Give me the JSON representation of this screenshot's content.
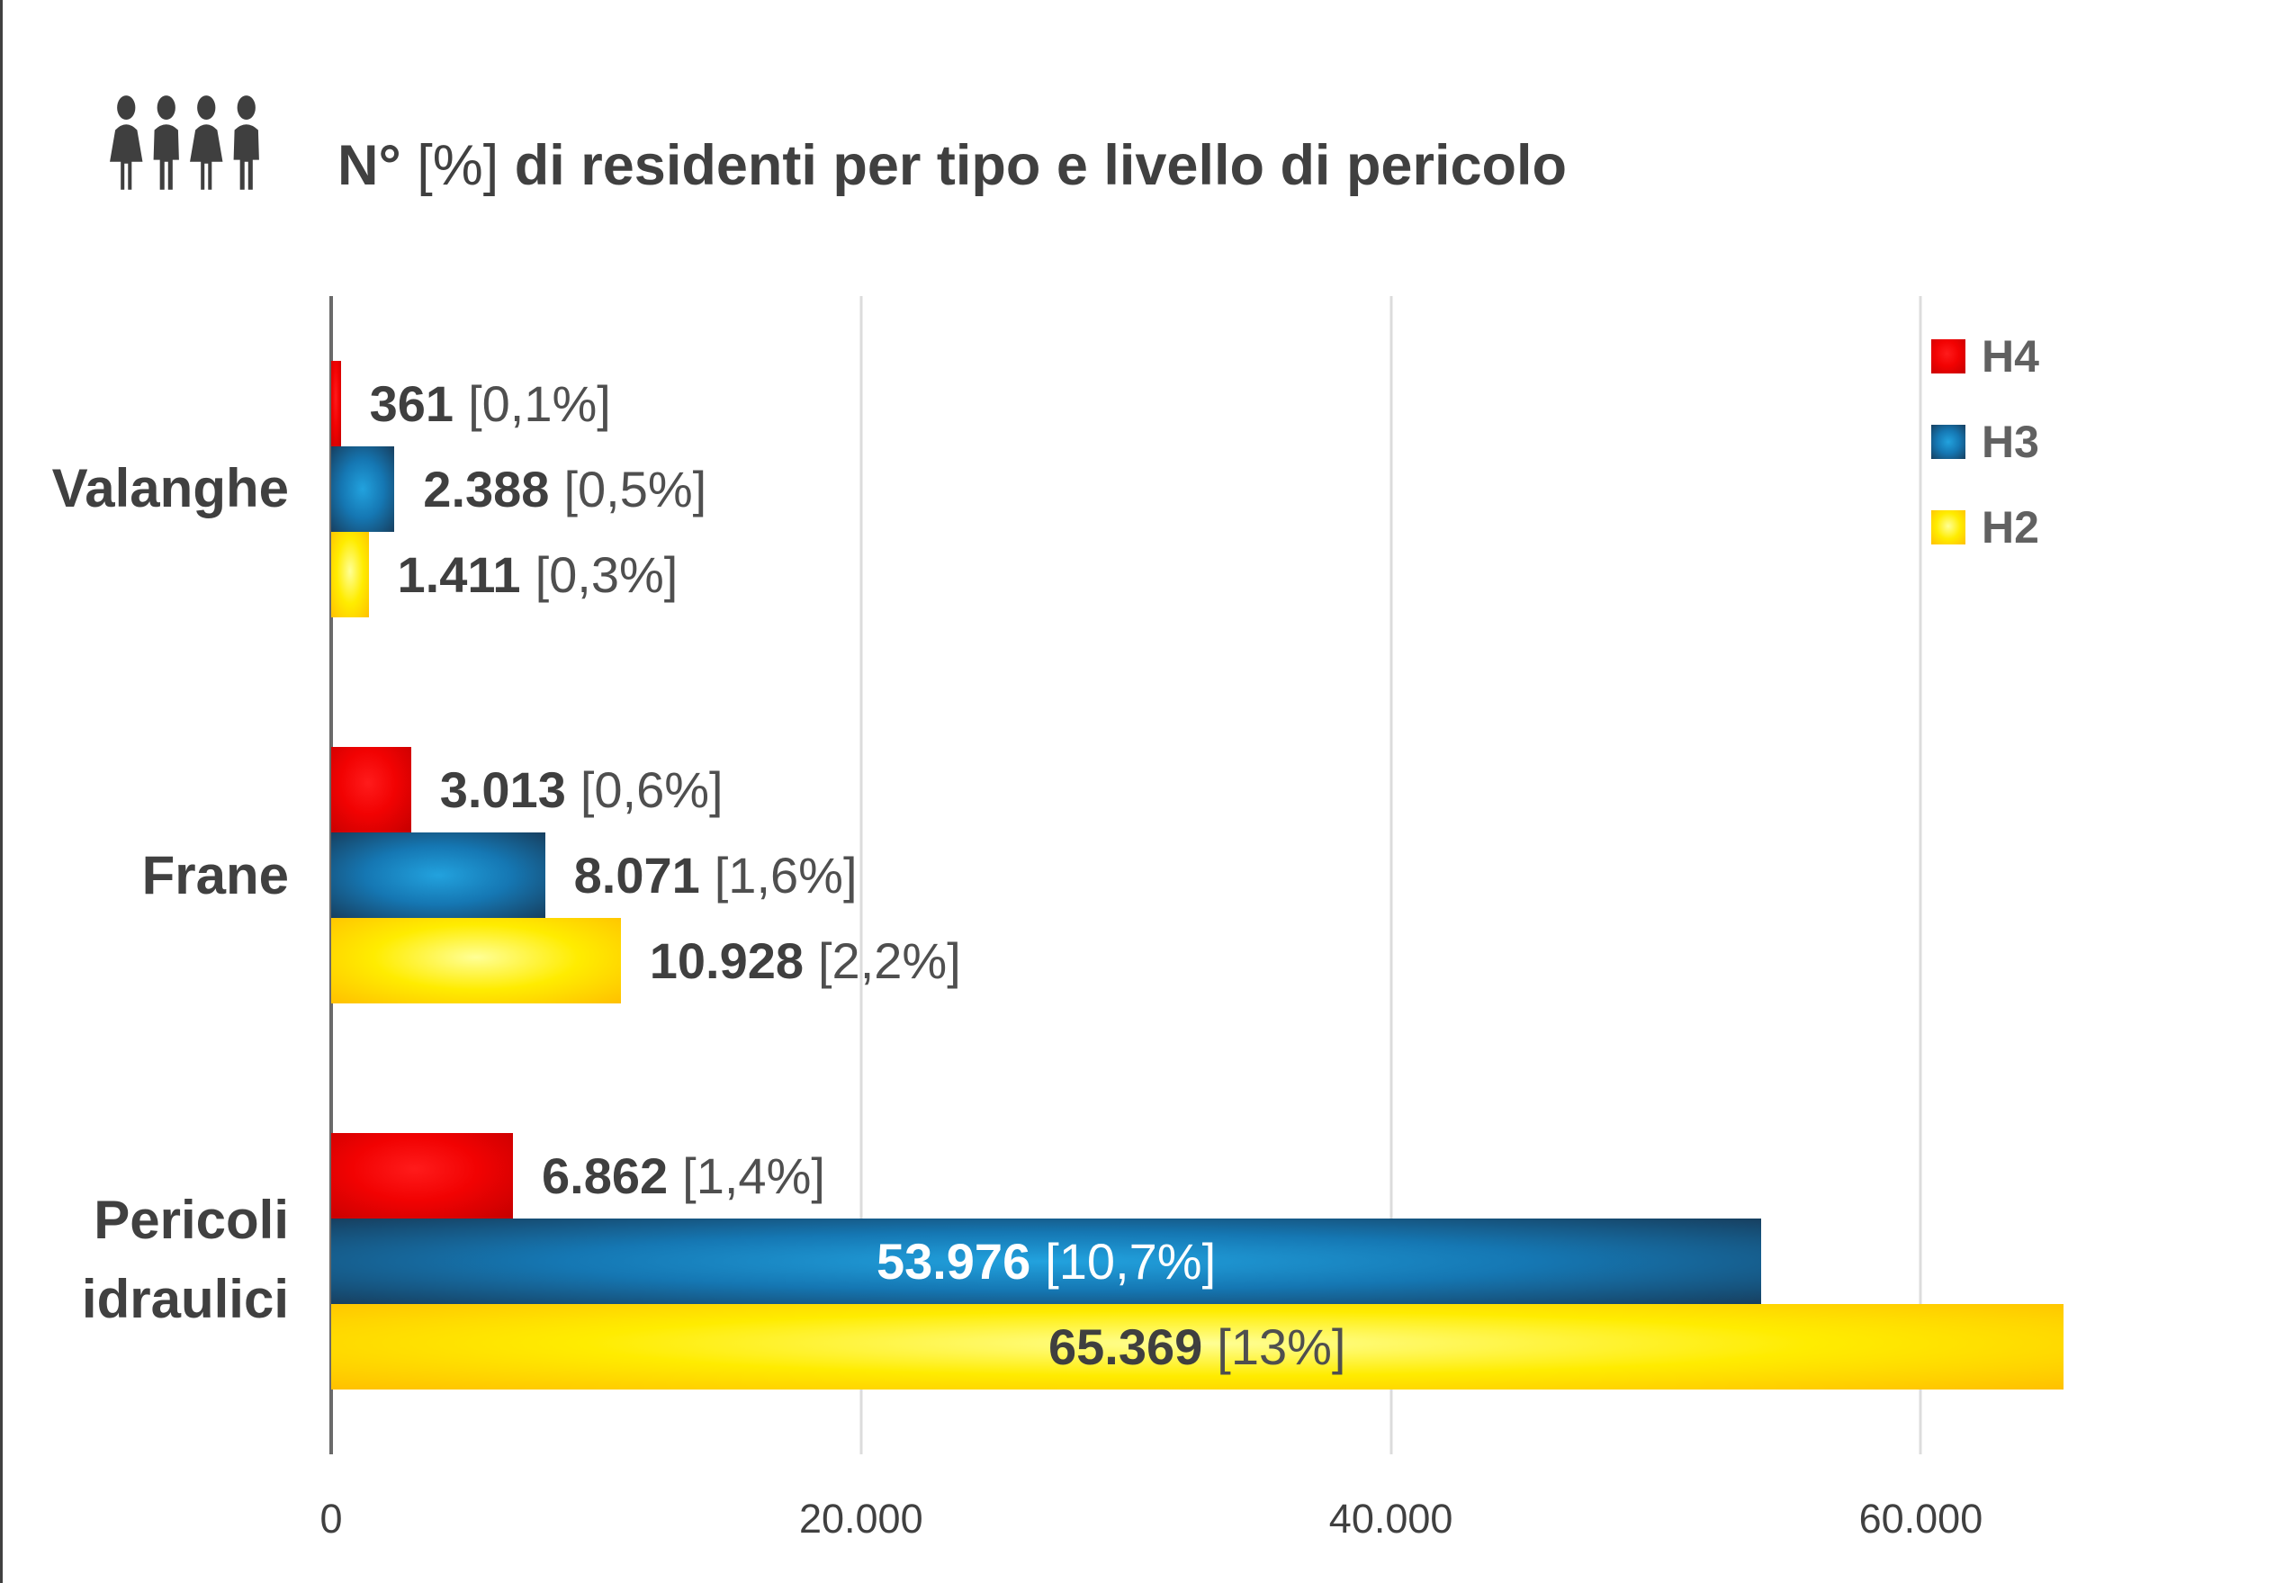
{
  "header": {
    "icon_name": "people-group-icon",
    "title_prefix": "N°",
    "title_bracket": "[%]",
    "title_rest": "di residenti per tipo e livello di pericolo"
  },
  "legend": {
    "items": [
      {
        "label": "H4",
        "color": "#e80000"
      },
      {
        "label": "H3",
        "color": "#1b75bb"
      },
      {
        "label": "H2",
        "color": "#ffe100"
      }
    ]
  },
  "chart_data": {
    "type": "bar",
    "orientation": "horizontal",
    "title": "N° [%] di residenti per tipo e livello di pericolo",
    "categories": [
      "Valanghe",
      "Frane",
      "Pericoli idraulici"
    ],
    "series": [
      {
        "name": "H4",
        "color": "#e80000",
        "values": [
          361,
          3013,
          6862
        ],
        "percent_labels": [
          "0,1%",
          "0,6%",
          "1,4%"
        ]
      },
      {
        "name": "H3",
        "color": "#1b75bb",
        "values": [
          2388,
          8071,
          53976
        ],
        "percent_labels": [
          "0,5%",
          "1,6%",
          "10,7%"
        ]
      },
      {
        "name": "H2",
        "color": "#ffe100",
        "values": [
          1411,
          10928,
          65369
        ],
        "percent_labels": [
          "0,3%",
          "2,2%",
          "13%"
        ]
      }
    ],
    "xlim": [
      0,
      71500
    ],
    "x_ticks": [
      0,
      20000,
      40000,
      60000
    ],
    "x_tick_labels": [
      "0",
      "20.000",
      "40.000",
      "60.000"
    ],
    "grid": "vertical-gridlines",
    "legend_position": "top-right",
    "groups": [
      {
        "category": "Valanghe",
        "bars": [
          {
            "series": "H4",
            "value": 361,
            "num": "361",
            "pct": "[0,1%]"
          },
          {
            "series": "H3",
            "value": 2388,
            "num": "2.388",
            "pct": "[0,5%]"
          },
          {
            "series": "H2",
            "value": 1411,
            "num": "1.411",
            "pct": "[0,3%]"
          }
        ]
      },
      {
        "category": "Frane",
        "bars": [
          {
            "series": "H4",
            "value": 3013,
            "num": "3.013",
            "pct": "[0,6%]"
          },
          {
            "series": "H3",
            "value": 8071,
            "num": "8.071",
            "pct": "[1,6%]"
          },
          {
            "series": "H2",
            "value": 10928,
            "num": "10.928",
            "pct": "[2,2%]"
          }
        ]
      },
      {
        "category": "Pericoli idraulici",
        "category_lines": [
          "Pericoli",
          "idraulici"
        ],
        "bars": [
          {
            "series": "H4",
            "value": 6862,
            "num": "6.862",
            "pct": "[1,4%]"
          },
          {
            "series": "H3",
            "value": 53976,
            "num": "53.976",
            "pct": "[10,7%]"
          },
          {
            "series": "H2",
            "value": 65369,
            "num": "65.369",
            "pct": "[13%]"
          }
        ]
      }
    ]
  }
}
